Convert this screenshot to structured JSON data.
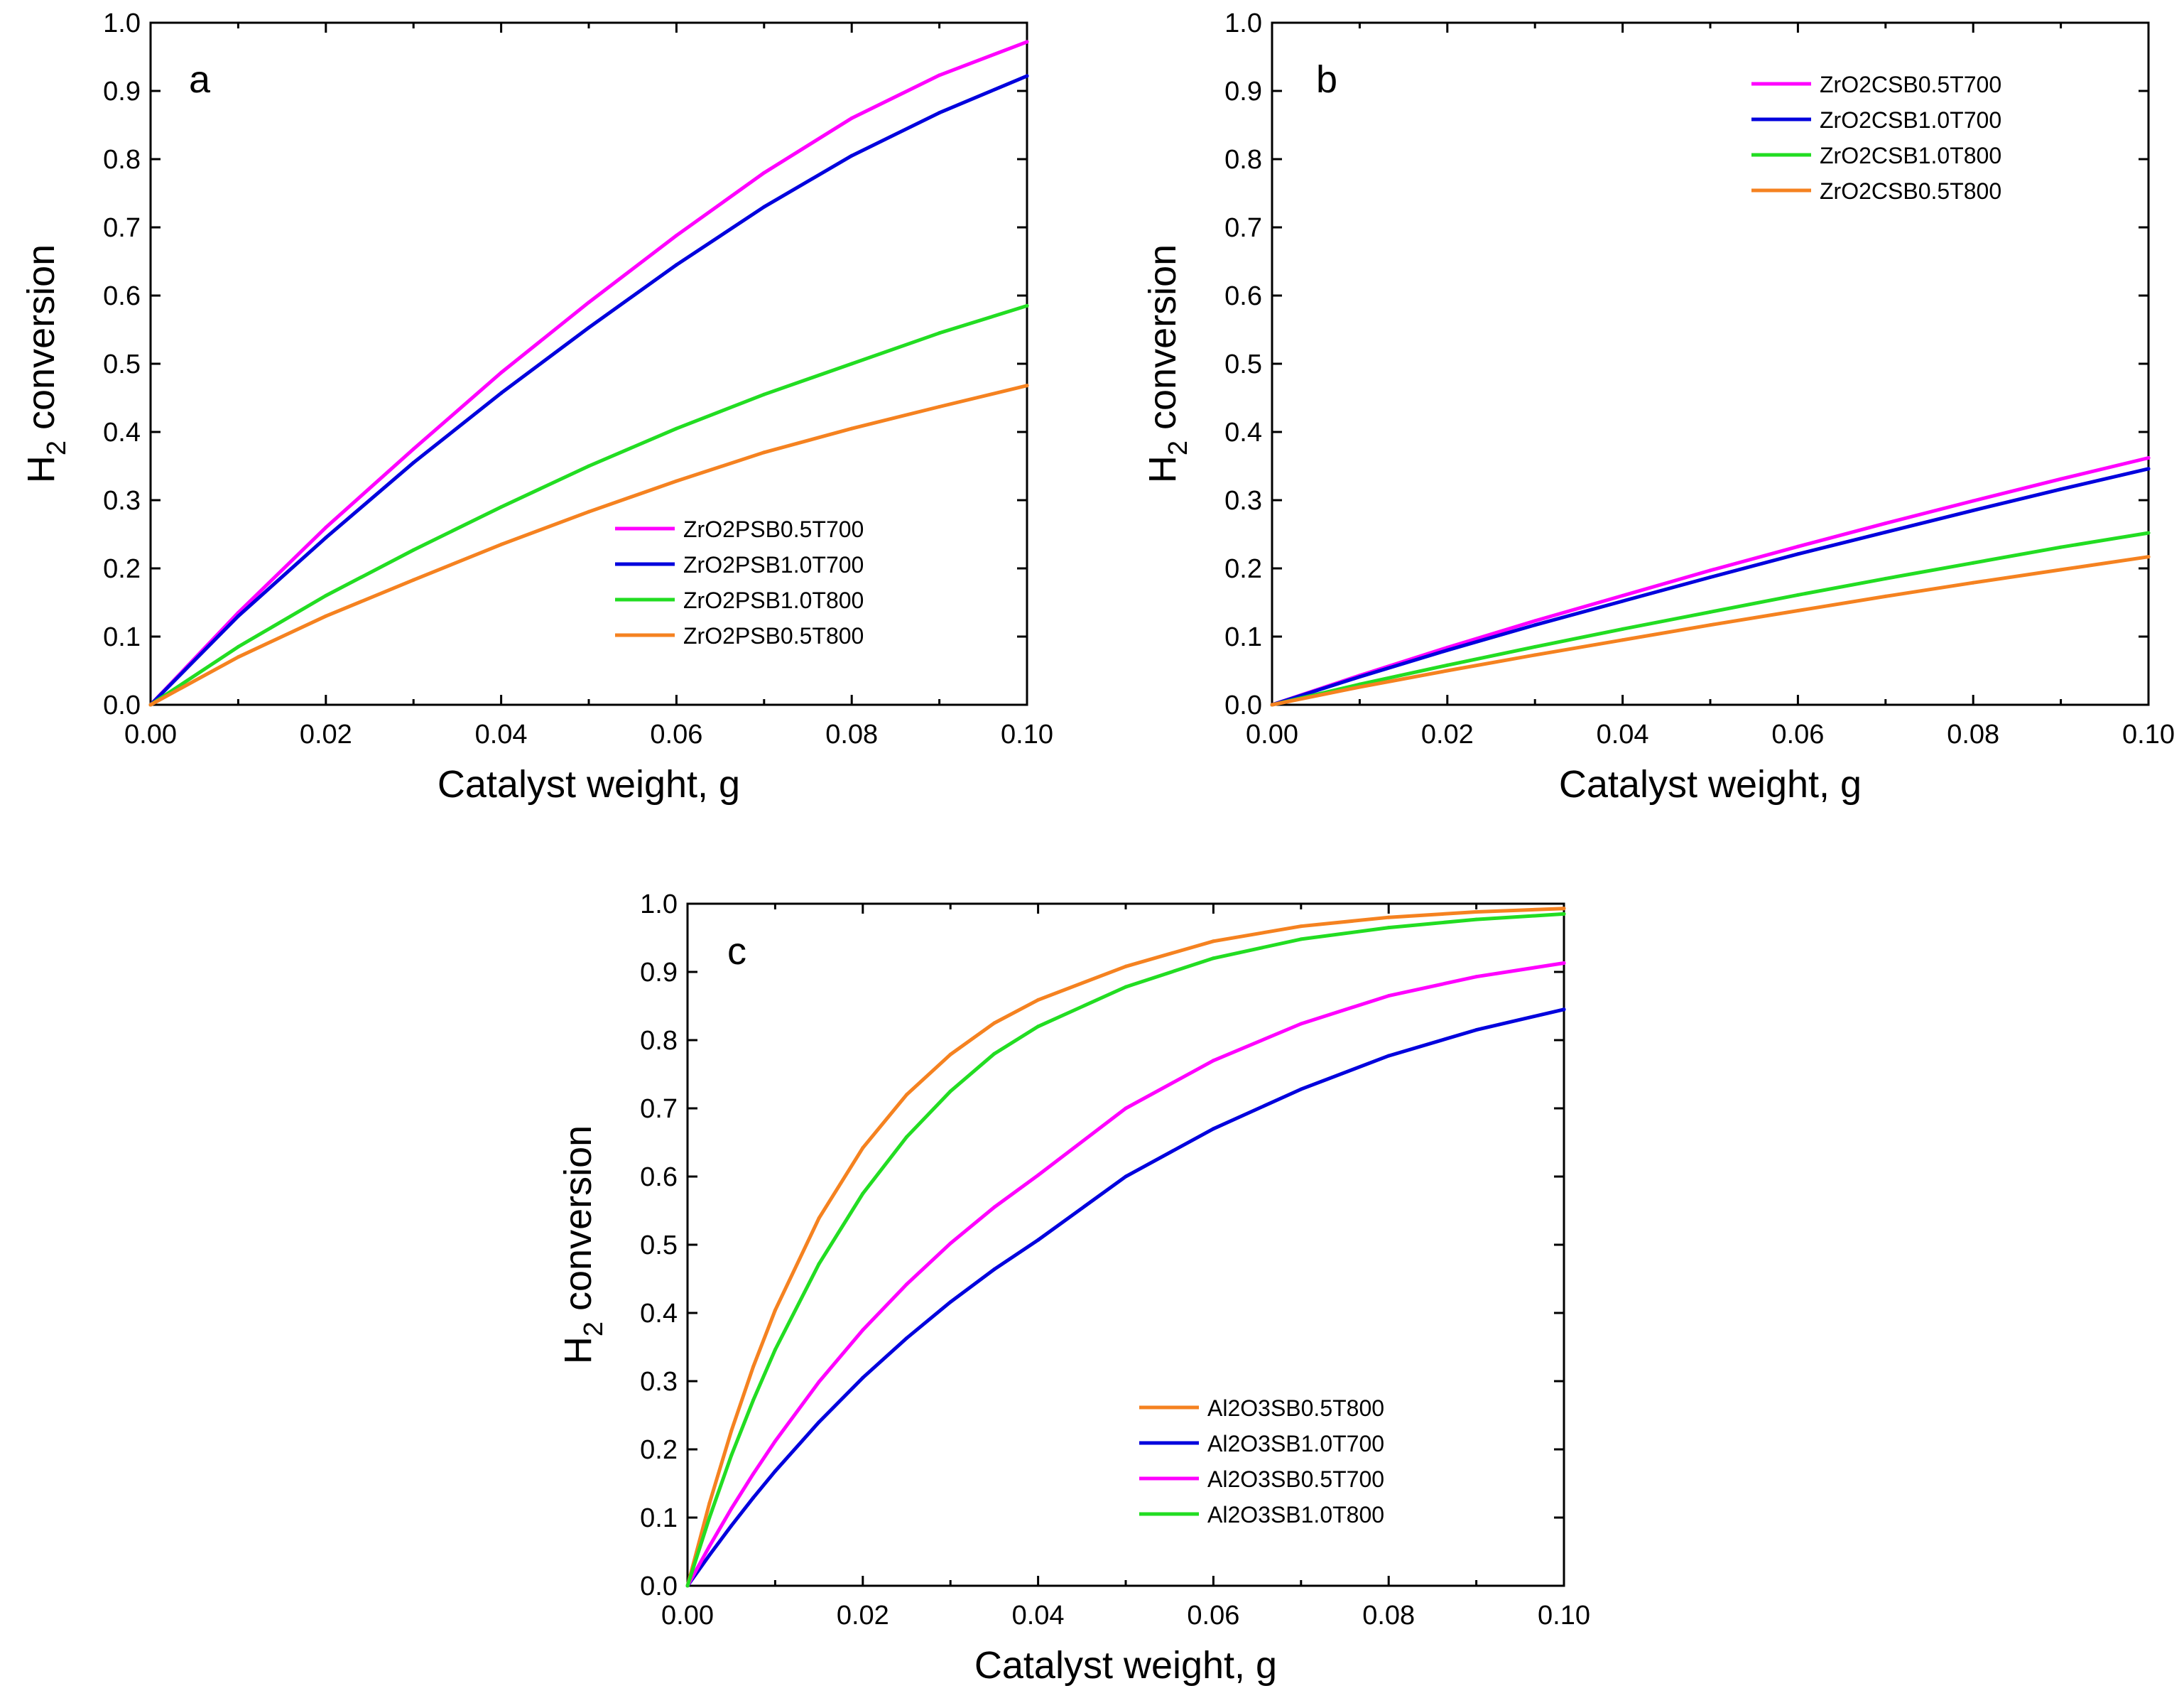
{
  "chart_data": [
    {
      "id": "a",
      "type": "line",
      "panel_label": "a",
      "xlabel": "Catalyst weight, g",
      "ylabel_main": "H",
      "ylabel_sub": "2",
      "ylabel_rest": " conversion",
      "xlim": [
        0,
        0.1
      ],
      "ylim": [
        0,
        1.0
      ],
      "xticks": [
        "0.00",
        "0.02",
        "0.04",
        "0.06",
        "0.08",
        "0.10"
      ],
      "yticks": [
        "0.0",
        "0.1",
        "0.2",
        "0.3",
        "0.4",
        "0.5",
        "0.6",
        "0.7",
        "0.8",
        "0.9",
        "1.0"
      ],
      "legend_position": "bottom-right",
      "series": [
        {
          "name": "ZrO2PSB0.5T700",
          "color": "#ff00ff",
          "x": [
            0,
            0.01,
            0.02,
            0.03,
            0.04,
            0.05,
            0.06,
            0.07,
            0.08,
            0.09,
            0.1
          ],
          "y": [
            0,
            0.135,
            0.26,
            0.375,
            0.487,
            0.59,
            0.688,
            0.78,
            0.86,
            0.923,
            0.972
          ]
        },
        {
          "name": "ZrO2PSB1.0T700",
          "color": "#0000dd",
          "x": [
            0,
            0.01,
            0.02,
            0.03,
            0.04,
            0.05,
            0.06,
            0.07,
            0.08,
            0.09,
            0.1
          ],
          "y": [
            0,
            0.13,
            0.245,
            0.355,
            0.457,
            0.553,
            0.645,
            0.73,
            0.805,
            0.868,
            0.922
          ]
        },
        {
          "name": "ZrO2PSB1.0T800",
          "color": "#22dd22",
          "x": [
            0,
            0.01,
            0.02,
            0.03,
            0.04,
            0.05,
            0.06,
            0.07,
            0.08,
            0.09,
            0.1
          ],
          "y": [
            0,
            0.085,
            0.16,
            0.227,
            0.29,
            0.35,
            0.405,
            0.455,
            0.5,
            0.545,
            0.585
          ]
        },
        {
          "name": "ZrO2PSB0.5T800",
          "color": "#f58220",
          "x": [
            0,
            0.01,
            0.02,
            0.03,
            0.04,
            0.05,
            0.06,
            0.07,
            0.08,
            0.09,
            0.1
          ],
          "y": [
            0,
            0.07,
            0.13,
            0.183,
            0.235,
            0.283,
            0.328,
            0.37,
            0.405,
            0.437,
            0.468
          ]
        }
      ]
    },
    {
      "id": "b",
      "type": "line",
      "panel_label": "b",
      "xlabel": "Catalyst weight, g",
      "ylabel_main": "H",
      "ylabel_sub": "2",
      "ylabel_rest": " conversion",
      "xlim": [
        0,
        0.1
      ],
      "ylim": [
        0,
        1.0
      ],
      "xticks": [
        "0.00",
        "0.02",
        "0.04",
        "0.06",
        "0.08",
        "0.10"
      ],
      "yticks": [
        "0.0",
        "0.1",
        "0.2",
        "0.3",
        "0.4",
        "0.5",
        "0.6",
        "0.7",
        "0.8",
        "0.9",
        "1.0"
      ],
      "legend_position": "top-right",
      "series": [
        {
          "name": "ZrO2CSB0.5T700",
          "color": "#ff00ff",
          "x": [
            0,
            0.01,
            0.02,
            0.03,
            0.04,
            0.05,
            0.06,
            0.07,
            0.08,
            0.09,
            0.1
          ],
          "y": [
            0,
            0.043,
            0.084,
            0.123,
            0.16,
            0.197,
            0.232,
            0.266,
            0.299,
            0.331,
            0.362
          ]
        },
        {
          "name": "ZrO2CSB1.0T700",
          "color": "#0000dd",
          "x": [
            0,
            0.01,
            0.02,
            0.03,
            0.04,
            0.05,
            0.06,
            0.07,
            0.08,
            0.09,
            0.1
          ],
          "y": [
            0,
            0.041,
            0.08,
            0.117,
            0.152,
            0.187,
            0.221,
            0.253,
            0.285,
            0.316,
            0.346
          ]
        },
        {
          "name": "ZrO2CSB1.0T800",
          "color": "#22dd22",
          "x": [
            0,
            0.01,
            0.02,
            0.03,
            0.04,
            0.05,
            0.06,
            0.07,
            0.08,
            0.09,
            0.1
          ],
          "y": [
            0,
            0.03,
            0.058,
            0.085,
            0.111,
            0.136,
            0.161,
            0.185,
            0.208,
            0.231,
            0.252
          ]
        },
        {
          "name": "ZrO2CSB0.5T800",
          "color": "#f58220",
          "x": [
            0,
            0.01,
            0.02,
            0.03,
            0.04,
            0.05,
            0.06,
            0.07,
            0.08,
            0.09,
            0.1
          ],
          "y": [
            0,
            0.026,
            0.05,
            0.073,
            0.095,
            0.117,
            0.138,
            0.159,
            0.179,
            0.198,
            0.217
          ]
        }
      ]
    },
    {
      "id": "c",
      "type": "line",
      "panel_label": "c",
      "xlabel": "Catalyst weight, g",
      "ylabel_main": "H",
      "ylabel_sub": "2",
      "ylabel_rest": " conversion",
      "xlim": [
        0,
        0.1
      ],
      "ylim": [
        0,
        1.0
      ],
      "xticks": [
        "0.00",
        "0.02",
        "0.04",
        "0.06",
        "0.08",
        "0.10"
      ],
      "yticks": [
        "0.0",
        "0.1",
        "0.2",
        "0.3",
        "0.4",
        "0.5",
        "0.6",
        "0.7",
        "0.8",
        "0.9",
        "1.0"
      ],
      "legend_position": "bottom-right",
      "series": [
        {
          "name": "Al2O3SB0.5T800",
          "color": "#f58220",
          "x": [
            0,
            0.0025,
            0.005,
            0.0075,
            0.01,
            0.015,
            0.02,
            0.025,
            0.03,
            0.035,
            0.04,
            0.05,
            0.06,
            0.07,
            0.08,
            0.09,
            0.1
          ],
          "y": [
            0,
            0.121,
            0.227,
            0.321,
            0.404,
            0.539,
            0.642,
            0.72,
            0.779,
            0.825,
            0.859,
            0.908,
            0.945,
            0.967,
            0.98,
            0.988,
            0.993
          ]
        },
        {
          "name": "Al2O3SB1.0T700",
          "color": "#0000dd",
          "x": [
            0,
            0.0025,
            0.005,
            0.0075,
            0.01,
            0.015,
            0.02,
            0.025,
            0.03,
            0.035,
            0.04,
            0.05,
            0.06,
            0.07,
            0.08,
            0.09,
            0.1
          ],
          "y": [
            0,
            0.045,
            0.088,
            0.129,
            0.168,
            0.24,
            0.305,
            0.363,
            0.416,
            0.464,
            0.507,
            0.6,
            0.67,
            0.728,
            0.777,
            0.815,
            0.845
          ]
        },
        {
          "name": "Al2O3SB0.5T700",
          "color": "#ff00ff",
          "x": [
            0,
            0.0025,
            0.005,
            0.0075,
            0.01,
            0.015,
            0.02,
            0.025,
            0.03,
            0.035,
            0.04,
            0.05,
            0.06,
            0.07,
            0.08,
            0.09,
            0.1
          ],
          "y": [
            0,
            0.058,
            0.113,
            0.164,
            0.212,
            0.299,
            0.375,
            0.442,
            0.502,
            0.555,
            0.602,
            0.7,
            0.77,
            0.824,
            0.865,
            0.893,
            0.913
          ]
        },
        {
          "name": "Al2O3SB1.0T800",
          "color": "#22dd22",
          "x": [
            0,
            0.0025,
            0.005,
            0.0075,
            0.01,
            0.015,
            0.02,
            0.025,
            0.03,
            0.035,
            0.04,
            0.05,
            0.06,
            0.07,
            0.08,
            0.09,
            0.1
          ],
          "y": [
            0,
            0.1,
            0.191,
            0.272,
            0.346,
            0.472,
            0.575,
            0.658,
            0.725,
            0.78,
            0.82,
            0.878,
            0.92,
            0.948,
            0.965,
            0.977,
            0.985
          ]
        }
      ]
    }
  ]
}
